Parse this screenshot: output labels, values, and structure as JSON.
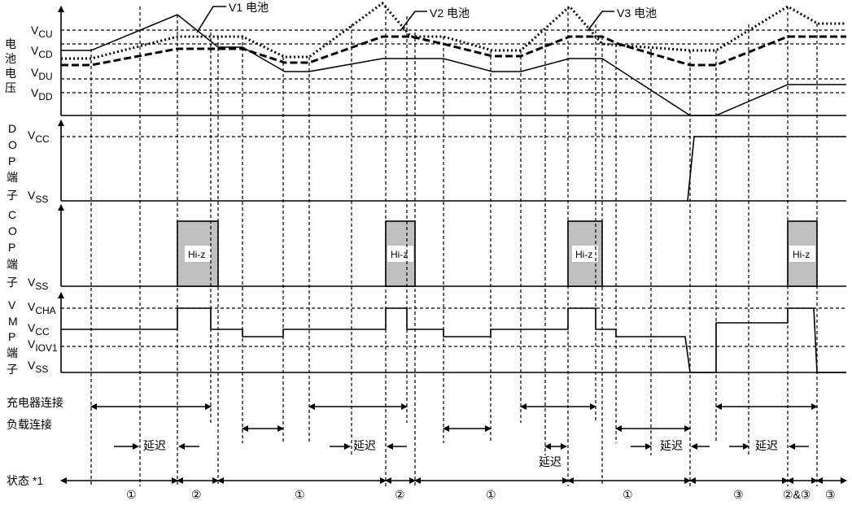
{
  "legend": {
    "v1": "V1 电池",
    "v2": "V2 电池",
    "v3": "V3 电池"
  },
  "panel_battery": {
    "label_chars": [
      "电",
      "池",
      "电",
      "压"
    ],
    "levels": {
      "vcu": "CU",
      "vcd": "CD",
      "vdu": "DU",
      "vdd": "DD"
    }
  },
  "panel_dop": {
    "label_chars": [
      "D",
      "O",
      "P",
      "端",
      "子"
    ],
    "vcc": "CC",
    "vss": "SS"
  },
  "panel_cop": {
    "label_chars": [
      "C",
      "O",
      "P",
      "端",
      "子"
    ],
    "vss": "SS",
    "hiz": "Hi-z"
  },
  "panel_vmp": {
    "label_chars": [
      "V",
      "M",
      "P",
      "端",
      "子"
    ],
    "vcha": "CHA",
    "vcc": "CC",
    "viov1": "IOV1",
    "vss": "SS"
  },
  "v_prefix": "V",
  "rows": {
    "charger": "充电器连接",
    "load": "负载连接",
    "delay": "延迟",
    "state": "状态 *1"
  },
  "states": [
    "①",
    "②",
    "①",
    "②",
    "①",
    "①",
    "③",
    "②&③",
    "③"
  ]
}
